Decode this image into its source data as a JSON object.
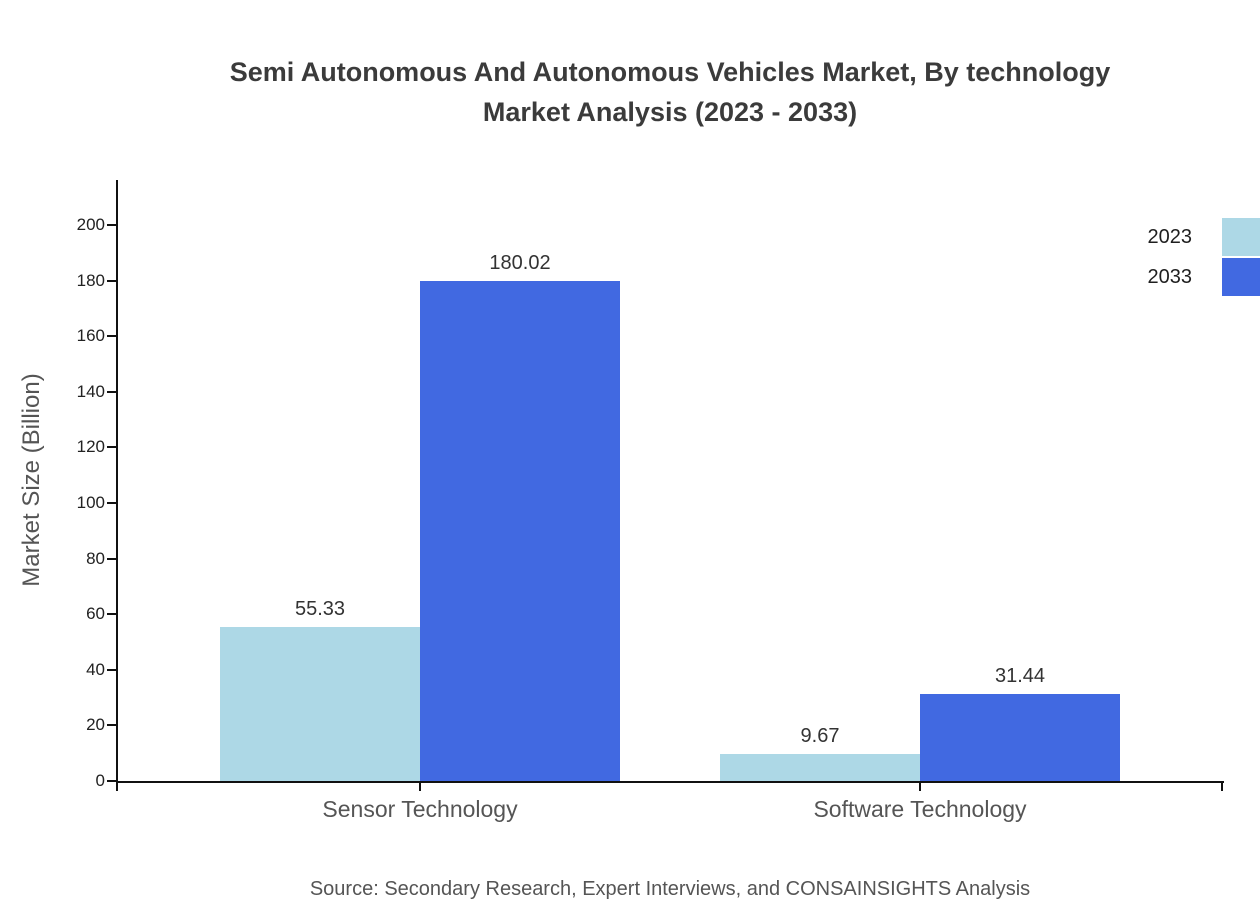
{
  "title_line1": "Semi Autonomous And Autonomous Vehicles Market, By technology",
  "title_line2": "Market Analysis (2023 - 2033)",
  "source": "Source: Secondary Research, Expert Interviews, and CONSAINSIGHTS Analysis",
  "chart_data": {
    "type": "bar",
    "title": "Semi Autonomous And Autonomous Vehicles Market, By technology Market Analysis (2023 - 2033)",
    "ylabel": "Market Size (Billion)",
    "xlabel": "",
    "categories": [
      "Sensor Technology",
      "Software Technology"
    ],
    "series": [
      {
        "name": "2023",
        "color": "#ADD8E6",
        "values": [
          55.33,
          9.67
        ]
      },
      {
        "name": "2033",
        "color": "#4169E1",
        "values": [
          180.02,
          31.44
        ]
      }
    ],
    "ylim": [
      0,
      200
    ],
    "ytick_step": 20,
    "grid": false,
    "legend_position": "top-right"
  }
}
